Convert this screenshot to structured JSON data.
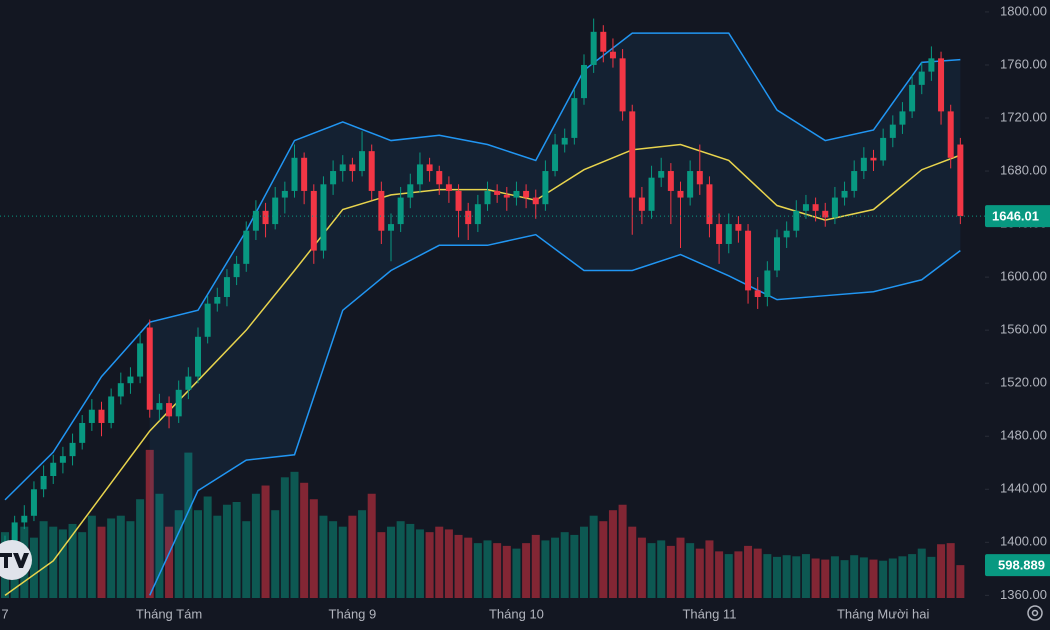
{
  "chart_data": {
    "type": "candlestick",
    "ylim": [
      1358,
      1809
    ],
    "yticks": [
      {
        "value": 1360,
        "label": "1360.00"
      },
      {
        "value": 1400,
        "label": "1400.00"
      },
      {
        "value": 1440,
        "label": "1440.00"
      },
      {
        "value": 1480,
        "label": "1480.00"
      },
      {
        "value": 1520,
        "label": "1520.00"
      },
      {
        "value": 1560,
        "label": "1560.00"
      },
      {
        "value": 1600,
        "label": "1600.00"
      },
      {
        "value": 1640,
        "label": "1640.00"
      },
      {
        "value": 1680,
        "label": "1680.00"
      },
      {
        "value": 1720,
        "label": "1720.00"
      },
      {
        "value": 1760,
        "label": "1760.00"
      },
      {
        "value": 1800,
        "label": "1800.00"
      }
    ],
    "xticks": [
      {
        "value": 0,
        "label": "7"
      },
      {
        "value": 17,
        "label": "Tháng Tám"
      },
      {
        "value": 36,
        "label": "Tháng 9"
      },
      {
        "value": 53,
        "label": "Tháng 10"
      },
      {
        "value": 73,
        "label": "Tháng 11"
      },
      {
        "value": 91,
        "label": "Tháng Mười hai"
      }
    ],
    "grid": false,
    "up_color": "#089981",
    "down_color": "#f23645",
    "candles": [
      [
        1392,
        1405,
        1385,
        1400
      ],
      [
        1400,
        1420,
        1396,
        1415
      ],
      [
        1415,
        1428,
        1410,
        1420
      ],
      [
        1420,
        1446,
        1416,
        1440
      ],
      [
        1440,
        1458,
        1434,
        1450
      ],
      [
        1450,
        1466,
        1444,
        1460
      ],
      [
        1460,
        1472,
        1452,
        1465
      ],
      [
        1465,
        1482,
        1458,
        1475
      ],
      [
        1475,
        1496,
        1470,
        1490
      ],
      [
        1490,
        1508,
        1484,
        1500
      ],
      [
        1500,
        1506,
        1480,
        1490
      ],
      [
        1490,
        1516,
        1486,
        1510
      ],
      [
        1510,
        1528,
        1504,
        1520
      ],
      [
        1520,
        1532,
        1512,
        1525
      ],
      [
        1525,
        1558,
        1520,
        1550
      ],
      [
        1562,
        1568,
        1494,
        1500
      ],
      [
        1500,
        1512,
        1492,
        1505
      ],
      [
        1505,
        1510,
        1486,
        1495
      ],
      [
        1495,
        1522,
        1490,
        1515
      ],
      [
        1515,
        1532,
        1508,
        1525
      ],
      [
        1525,
        1562,
        1520,
        1555
      ],
      [
        1555,
        1586,
        1550,
        1580
      ],
      [
        1580,
        1592,
        1574,
        1585
      ],
      [
        1585,
        1606,
        1578,
        1600
      ],
      [
        1600,
        1616,
        1594,
        1610
      ],
      [
        1610,
        1642,
        1604,
        1635
      ],
      [
        1635,
        1658,
        1628,
        1650
      ],
      [
        1650,
        1656,
        1630,
        1640
      ],
      [
        1640,
        1668,
        1636,
        1660
      ],
      [
        1660,
        1672,
        1648,
        1665
      ],
      [
        1665,
        1700,
        1660,
        1690
      ],
      [
        1690,
        1694,
        1655,
        1665
      ],
      [
        1665,
        1670,
        1610,
        1620
      ],
      [
        1620,
        1676,
        1614,
        1670
      ],
      [
        1670,
        1688,
        1662,
        1680
      ],
      [
        1680,
        1692,
        1672,
        1685
      ],
      [
        1685,
        1690,
        1672,
        1680
      ],
      [
        1680,
        1710,
        1676,
        1695
      ],
      [
        1695,
        1700,
        1658,
        1665
      ],
      [
        1665,
        1672,
        1625,
        1635
      ],
      [
        1635,
        1648,
        1612,
        1640
      ],
      [
        1640,
        1668,
        1634,
        1660
      ],
      [
        1660,
        1678,
        1652,
        1670
      ],
      [
        1670,
        1694,
        1664,
        1685
      ],
      [
        1685,
        1690,
        1672,
        1680
      ],
      [
        1680,
        1684,
        1662,
        1670
      ],
      [
        1670,
        1676,
        1656,
        1665
      ],
      [
        1665,
        1670,
        1630,
        1650
      ],
      [
        1650,
        1656,
        1628,
        1640
      ],
      [
        1640,
        1662,
        1634,
        1655
      ],
      [
        1655,
        1672,
        1650,
        1665
      ],
      [
        1665,
        1670,
        1656,
        1662
      ],
      [
        1662,
        1668,
        1650,
        1660
      ],
      [
        1660,
        1672,
        1654,
        1665
      ],
      [
        1665,
        1670,
        1652,
        1660
      ],
      [
        1660,
        1666,
        1644,
        1655
      ],
      [
        1655,
        1688,
        1650,
        1680
      ],
      [
        1680,
        1708,
        1676,
        1700
      ],
      [
        1700,
        1712,
        1694,
        1705
      ],
      [
        1705,
        1742,
        1700,
        1735
      ],
      [
        1735,
        1768,
        1730,
        1760
      ],
      [
        1760,
        1795,
        1754,
        1785
      ],
      [
        1785,
        1790,
        1762,
        1770
      ],
      [
        1770,
        1780,
        1758,
        1765
      ],
      [
        1765,
        1772,
        1718,
        1725
      ],
      [
        1725,
        1730,
        1632,
        1660
      ],
      [
        1660,
        1668,
        1640,
        1650
      ],
      [
        1650,
        1684,
        1644,
        1675
      ],
      [
        1675,
        1690,
        1668,
        1680
      ],
      [
        1680,
        1686,
        1640,
        1665
      ],
      [
        1665,
        1672,
        1622,
        1660
      ],
      [
        1660,
        1688,
        1654,
        1680
      ],
      [
        1680,
        1700,
        1662,
        1670
      ],
      [
        1670,
        1676,
        1630,
        1640
      ],
      [
        1640,
        1648,
        1610,
        1625
      ],
      [
        1625,
        1648,
        1618,
        1640
      ],
      [
        1640,
        1646,
        1626,
        1635
      ],
      [
        1635,
        1640,
        1580,
        1590
      ],
      [
        1590,
        1600,
        1576,
        1585
      ],
      [
        1585,
        1612,
        1578,
        1605
      ],
      [
        1605,
        1636,
        1600,
        1630
      ],
      [
        1630,
        1642,
        1622,
        1635
      ],
      [
        1635,
        1658,
        1630,
        1650
      ],
      [
        1650,
        1662,
        1644,
        1655
      ],
      [
        1655,
        1660,
        1642,
        1650
      ],
      [
        1650,
        1656,
        1638,
        1645
      ],
      [
        1645,
        1668,
        1640,
        1660
      ],
      [
        1660,
        1672,
        1654,
        1665
      ],
      [
        1665,
        1688,
        1660,
        1680
      ],
      [
        1680,
        1698,
        1674,
        1690
      ],
      [
        1690,
        1696,
        1680,
        1688
      ],
      [
        1688,
        1712,
        1684,
        1705
      ],
      [
        1705,
        1722,
        1698,
        1715
      ],
      [
        1715,
        1732,
        1708,
        1725
      ],
      [
        1725,
        1752,
        1720,
        1745
      ],
      [
        1745,
        1762,
        1738,
        1755
      ],
      [
        1755,
        1774,
        1748,
        1765
      ],
      [
        1765,
        1770,
        1715,
        1725
      ],
      [
        1725,
        1730,
        1682,
        1690
      ],
      [
        1700,
        1705,
        1640,
        1646.01
      ]
    ],
    "volumes": [
      1200000,
      900000,
      1300000,
      1100000,
      1400000,
      1300000,
      1250000,
      1350000,
      1200000,
      1500000,
      1300000,
      1450000,
      1500000,
      1400000,
      1800000,
      2700000,
      1900000,
      1300000,
      1600000,
      2650000,
      1600000,
      1850000,
      1500000,
      1700000,
      1750000,
      1400000,
      1900000,
      2050000,
      1600000,
      2200000,
      2300000,
      2100000,
      1800000,
      1500000,
      1400000,
      1300000,
      1500000,
      1600000,
      1900000,
      1200000,
      1300000,
      1400000,
      1350000,
      1250000,
      1200000,
      1300000,
      1250000,
      1150000,
      1100000,
      1000000,
      1050000,
      1000000,
      950000,
      900000,
      1000000,
      1150000,
      1050000,
      1100000,
      1200000,
      1150000,
      1300000,
      1500000,
      1400000,
      1600000,
      1700000,
      1300000,
      1100000,
      1000000,
      1050000,
      950000,
      1100000,
      1000000,
      900000,
      1050000,
      850000,
      800000,
      850000,
      950000,
      900000,
      800000,
      750000,
      780000,
      760000,
      800000,
      720000,
      700000,
      760000,
      690000,
      780000,
      740000,
      700000,
      680000,
      720000,
      760000,
      800000,
      900000,
      750000,
      980000,
      1000000,
      598889
    ],
    "volume_ylim": [
      0,
      10900000
    ],
    "last_volume_label": "598.889",
    "bands": {
      "x": [
        0,
        5,
        10,
        15,
        20,
        25,
        30,
        35,
        40,
        45,
        50,
        55,
        60,
        65,
        70,
        75,
        80,
        85,
        90,
        95,
        99
      ],
      "band_color": "#2196f3",
      "middle_color": "#e8d44d",
      "upper": [
        1432,
        1468,
        1525,
        1566,
        1575,
        1635,
        1703,
        1717,
        1703,
        1707,
        1700,
        1688,
        1756,
        1784,
        1784,
        1784,
        1726,
        1703,
        1711,
        1762,
        1764
      ],
      "middle": [
        1360,
        1386,
        1435,
        1484,
        1522,
        1560,
        1605,
        1651,
        1662,
        1666,
        1666,
        1658,
        1681,
        1696,
        1700,
        1688,
        1654,
        1643,
        1651,
        1681,
        1692
      ],
      "lower": [
        null,
        null,
        null,
        1360,
        1439,
        1462,
        1466,
        1575,
        1605,
        1624,
        1624,
        1632,
        1605,
        1605,
        1617,
        1601,
        1583,
        1586,
        1589,
        1598,
        1620
      ]
    }
  }
}
